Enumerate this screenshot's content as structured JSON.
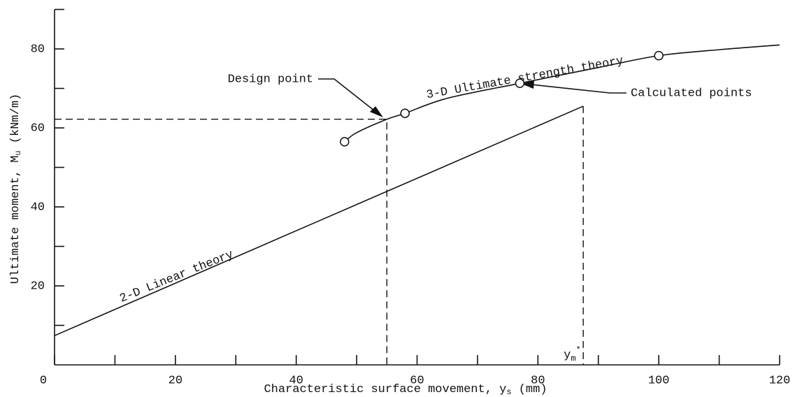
{
  "chart_data": {
    "type": "line",
    "x_label": "Characteristic surface movement, y",
    "x_label_sub": "s",
    "x_label_unit": " (mm)",
    "y_label": "Ultimate moment, M",
    "y_label_sub": "u",
    "y_label_unit": " (kNm/m)",
    "xlim": [
      0,
      120
    ],
    "ylim": [
      0,
      90
    ],
    "xticks": [
      0,
      20,
      40,
      60,
      80,
      100,
      120
    ],
    "xminor_ticks": [
      10,
      30,
      50,
      70,
      90,
      110
    ],
    "yticks": [
      20,
      40,
      60,
      80
    ],
    "yminor_ticks": [
      10,
      30,
      50,
      70,
      90
    ],
    "series": [
      {
        "name": "2-D Linear theory",
        "color": "#111111",
        "x": [
          0,
          87.5
        ],
        "values": [
          7.4,
          65.5
        ]
      },
      {
        "name": "3-D Ultimate strength theory",
        "color": "#111111",
        "x": [
          48,
          50,
          55,
          58,
          65,
          77,
          90,
          100,
          110,
          120
        ],
        "values": [
          56.5,
          58.8,
          62.2,
          63.7,
          67.5,
          71.3,
          75.3,
          78.3,
          79.8,
          81
        ]
      }
    ],
    "calculated_points": {
      "name": "Calculated points",
      "x": [
        48,
        58,
        77,
        100
      ],
      "values": [
        56.5,
        63.7,
        71.3,
        78.3
      ]
    },
    "design_point": {
      "name": "Design point",
      "x": 55,
      "y": 62.2
    },
    "ym_star": {
      "x": 87.5,
      "label": "y",
      "label_sub": "m",
      "label_sup": "*"
    }
  }
}
